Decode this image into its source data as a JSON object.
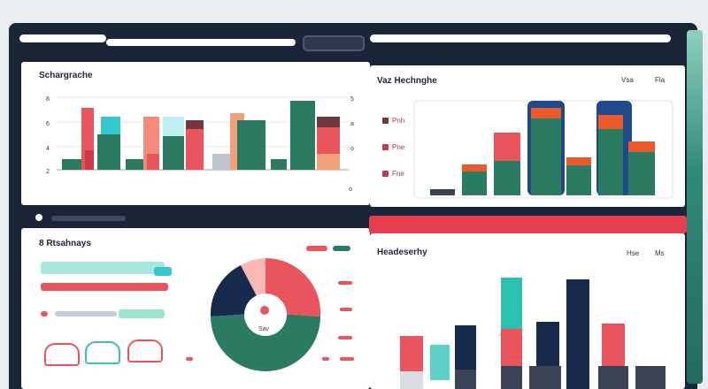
{
  "panels": {
    "top_left": {
      "title": "Schargrache"
    },
    "top_right": {
      "title": "Vaz Hechnghe",
      "header_tags": [
        "Vsa",
        "Fla"
      ],
      "legend": [
        "Pnh",
        "Pne",
        "Fne"
      ]
    },
    "bottom_left": {
      "title": "8 Rtsahnays",
      "pie_center": "Sav"
    },
    "bottom_right": {
      "title": "Headeserhy",
      "header_tags": [
        "Hse",
        "Ms"
      ]
    }
  },
  "colors": {
    "teal": "#2b7a62",
    "red": "#e9555c",
    "navy": "#162a4e",
    "cyan": "#34c8cc",
    "orange": "#ea5a2c",
    "frame": "#1a2537"
  }
}
